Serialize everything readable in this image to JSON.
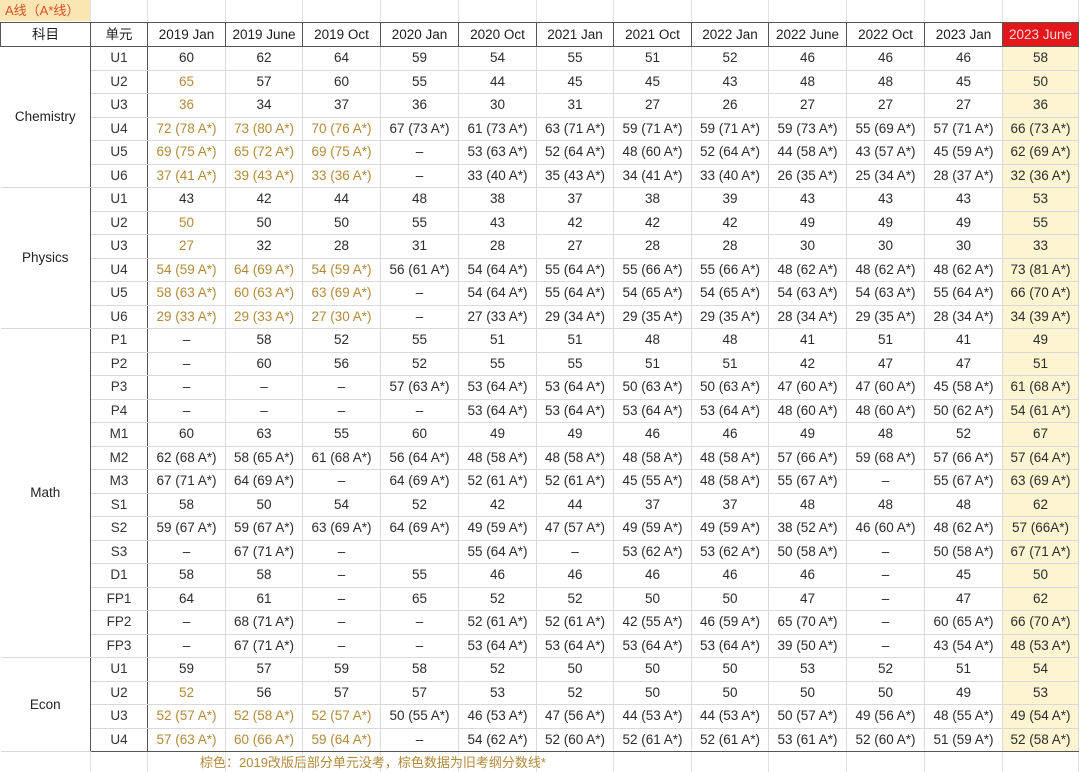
{
  "title": "A线（A*线）",
  "headers": {
    "subject": "科目",
    "unit": "单元",
    "sessions": [
      "2019 Jan",
      "2019 June",
      "2019 Oct",
      "2020 Jan",
      "2020 Oct",
      "2021 Jan",
      "2021 Oct",
      "2022 Jan",
      "2022 June",
      "2022 Oct",
      "2023 Jan",
      "2023 June"
    ],
    "highlighted_session": "2023 June"
  },
  "colors": {
    "highlight_header": "#e3161b",
    "highlight_column": "#fdf5d2",
    "old_syllabus_text": "#b38a3a",
    "title_bg": "#fbe6b3"
  },
  "groups": [
    {
      "subject": "Chemistry",
      "rows": [
        {
          "unit": "U1",
          "values": [
            "60",
            "62",
            "64",
            "59",
            "54",
            "55",
            "51",
            "52",
            "46",
            "46",
            "46",
            "58"
          ],
          "brown": []
        },
        {
          "unit": "U2",
          "values": [
            "65",
            "57",
            "60",
            "55",
            "44",
            "45",
            "45",
            "43",
            "48",
            "48",
            "45",
            "50"
          ],
          "brown": [
            0
          ]
        },
        {
          "unit": "U3",
          "values": [
            "36",
            "34",
            "37",
            "36",
            "30",
            "31",
            "27",
            "26",
            "27",
            "27",
            "27",
            "36"
          ],
          "brown": [
            0
          ]
        },
        {
          "unit": "U4",
          "values": [
            "72 (78 A*)",
            "73 (80 A*)",
            "70 (76 A*)",
            "67 (73 A*)",
            "61 (73 A*)",
            "63 (71 A*)",
            "59 (71 A*)",
            "59 (71 A*)",
            "59 (73 A*)",
            "55 (69 A*)",
            "57 (71 A*)",
            "66 (73 A*)"
          ],
          "brown": [
            0,
            1,
            2
          ]
        },
        {
          "unit": "U5",
          "values": [
            "69 (75 A*)",
            "65 (72 A*)",
            "69 (75 A*)",
            "–",
            "53 (63 A*)",
            "52 (64 A*)",
            "48 (60 A*)",
            "52 (64 A*)",
            "44 (58 A*)",
            "43 (57 A*)",
            "45 (59 A*)",
            "62 (69 A*)"
          ],
          "brown": [
            0,
            1,
            2
          ]
        },
        {
          "unit": "U6",
          "values": [
            "37 (41 A*)",
            "39 (43 A*)",
            "33 (36 A*)",
            "–",
            "33 (40 A*)",
            "35 (43 A*)",
            "34 (41 A*)",
            "33 (40 A*)",
            "26 (35 A*)",
            "25 (34 A*)",
            "28 (37 A*)",
            "32 (36 A*)"
          ],
          "brown": [
            0,
            1,
            2
          ]
        }
      ]
    },
    {
      "subject": "Physics",
      "rows": [
        {
          "unit": "U1",
          "values": [
            "43",
            "42",
            "44",
            "48",
            "38",
            "37",
            "38",
            "39",
            "43",
            "43",
            "43",
            "53"
          ],
          "brown": []
        },
        {
          "unit": "U2",
          "values": [
            "50",
            "50",
            "50",
            "55",
            "43",
            "42",
            "42",
            "42",
            "49",
            "49",
            "49",
            "55"
          ],
          "brown": [
            0
          ]
        },
        {
          "unit": "U3",
          "values": [
            "27",
            "32",
            "28",
            "31",
            "28",
            "27",
            "28",
            "28",
            "30",
            "30",
            "30",
            "33"
          ],
          "brown": [
            0
          ]
        },
        {
          "unit": "U4",
          "values": [
            "54 (59 A*)",
            "64 (69 A*)",
            "54 (59 A*)",
            "56 (61 A*)",
            "54 (64 A*)",
            "55 (64 A*)",
            "55 (66 A*)",
            "55 (66 A*)",
            "48 (62 A*)",
            "48 (62 A*)",
            "48 (62 A*)",
            "73 (81 A*)"
          ],
          "brown": [
            0,
            1,
            2
          ]
        },
        {
          "unit": "U5",
          "values": [
            "58 (63 A*)",
            "60 (63 A*)",
            "63 (69 A*)",
            "–",
            "54 (64 A*)",
            "55 (64 A*)",
            "54 (65 A*)",
            "54 (65 A*)",
            "54 (63 A*)",
            "54 (63 A*)",
            "55 (64 A*)",
            "66 (70 A*)"
          ],
          "brown": [
            0,
            1,
            2
          ]
        },
        {
          "unit": "U6",
          "values": [
            "29 (33 A*)",
            "29 (33 A*)",
            "27 (30 A*)",
            "–",
            "27 (33 A*)",
            "29 (34 A*)",
            "29 (35 A*)",
            "29 (35 A*)",
            "28 (34 A*)",
            "29 (35 A*)",
            "28 (34 A*)",
            "34 (39 A*)"
          ],
          "brown": [
            0,
            1,
            2
          ]
        }
      ]
    },
    {
      "subject": "Math",
      "rows": [
        {
          "unit": "P1",
          "values": [
            "–",
            "58",
            "52",
            "55",
            "51",
            "51",
            "48",
            "48",
            "41",
            "51",
            "41",
            "49"
          ],
          "brown": []
        },
        {
          "unit": "P2",
          "values": [
            "–",
            "60",
            "56",
            "52",
            "55",
            "55",
            "51",
            "51",
            "42",
            "47",
            "47",
            "51"
          ],
          "brown": []
        },
        {
          "unit": "P3",
          "values": [
            "–",
            "–",
            "–",
            "57 (63 A*)",
            "53 (64 A*)",
            "53 (64 A*)",
            "50 (63 A*)",
            "50 (63 A*)",
            "47 (60 A*)",
            "47 (60 A*)",
            "45 (58 A*)",
            "61 (68 A*)"
          ],
          "brown": []
        },
        {
          "unit": "P4",
          "values": [
            "–",
            "–",
            "–",
            "–",
            "53 (64 A*)",
            "53 (64 A*)",
            "53 (64 A*)",
            "53 (64 A*)",
            "48 (60 A*)",
            "48 (60 A*)",
            "50 (62 A*)",
            "54 (61 A*)"
          ],
          "brown": []
        },
        {
          "unit": "M1",
          "values": [
            "60",
            "63",
            "55",
            "60",
            "49",
            "49",
            "46",
            "46",
            "49",
            "48",
            "52",
            "67"
          ],
          "brown": [],
          "subtop": true
        },
        {
          "unit": "M2",
          "values": [
            "62 (68 A*)",
            "58 (65 A*)",
            "61 (68 A*)",
            "56 (64 A*)",
            "48 (58 A*)",
            "48 (58 A*)",
            "48 (58 A*)",
            "48 (58 A*)",
            "57 (66 A*)",
            "59 (68 A*)",
            "57 (66 A*)",
            "57 (64 A*)"
          ],
          "brown": []
        },
        {
          "unit": "M3",
          "values": [
            "67 (71 A*)",
            "64 (69 A*)",
            "–",
            "64 (69 A*)",
            "52 (61 A*)",
            "52 (61 A*)",
            "45 (55 A*)",
            "48 (58 A*)",
            "55 (67 A*)",
            "–",
            "55 (67 A*)",
            "63 (69 A*)"
          ],
          "brown": []
        },
        {
          "unit": "S1",
          "values": [
            "58",
            "50",
            "54",
            "52",
            "42",
            "44",
            "37",
            "37",
            "48",
            "48",
            "48",
            "62"
          ],
          "brown": [],
          "subtop": true
        },
        {
          "unit": "S2",
          "values": [
            "59 (67 A*)",
            "59 (67 A*)",
            "63 (69 A*)",
            "64 (69 A*)",
            "49 (59 A*)",
            "47 (57 A*)",
            "49 (59 A*)",
            "49 (59 A*)",
            "38 (52 A*)",
            "46 (60 A*)",
            "48 (62 A*)",
            "57 (66A*)"
          ],
          "brown": []
        },
        {
          "unit": "S3",
          "values": [
            "–",
            "67 (71 A*)",
            "–",
            "",
            "55 (64 A*)",
            "–",
            "53 (62 A*)",
            "53 (62 A*)",
            "50 (58 A*)",
            "–",
            "50 (58 A*)",
            "67 (71 A*)"
          ],
          "brown": []
        },
        {
          "unit": "D1",
          "values": [
            "58",
            "58",
            "–",
            "55",
            "46",
            "46",
            "46",
            "46",
            "46",
            "–",
            "45",
            "50"
          ],
          "brown": [],
          "subtop": true
        },
        {
          "unit": "FP1",
          "values": [
            "64",
            "61",
            "–",
            "65",
            "52",
            "52",
            "50",
            "50",
            "47",
            "–",
            "47",
            "62"
          ],
          "brown": [],
          "subtop": true
        },
        {
          "unit": "FP2",
          "values": [
            "–",
            "68 (71 A*)",
            "–",
            "–",
            "52 (61 A*)",
            "52 (61 A*)",
            "42 (55 A*)",
            "46 (59 A*)",
            "65 (70 A*)",
            "–",
            "60 (65 A*)",
            "66 (70 A*)"
          ],
          "brown": []
        },
        {
          "unit": "FP3",
          "values": [
            "–",
            "67 (71 A*)",
            "–",
            "–",
            "53 (64 A*)",
            "53 (64 A*)",
            "53 (64 A*)",
            "53 (64 A*)",
            "39 (50 A*)",
            "–",
            "43 (54 A*)",
            "48 (53 A*)"
          ],
          "brown": []
        }
      ]
    },
    {
      "subject": "Econ",
      "rows": [
        {
          "unit": "U1",
          "values": [
            "59",
            "57",
            "59",
            "58",
            "52",
            "50",
            "50",
            "50",
            "53",
            "52",
            "51",
            "54"
          ],
          "brown": []
        },
        {
          "unit": "U2",
          "values": [
            "52",
            "56",
            "57",
            "57",
            "53",
            "52",
            "50",
            "50",
            "50",
            "50",
            "49",
            "53"
          ],
          "brown": [
            0
          ]
        },
        {
          "unit": "U3",
          "values": [
            "52 (57 A*)",
            "52 (58 A*)",
            "52 (57 A*)",
            "50 (55 A*)",
            "46 (53 A*)",
            "47 (56 A*)",
            "44 (53 A*)",
            "44 (53 A*)",
            "50 (57 A*)",
            "49 (56 A*)",
            "48 (55 A*)",
            "49 (54 A*)"
          ],
          "brown": [
            0,
            1,
            2
          ]
        },
        {
          "unit": "U4",
          "values": [
            "57 (63 A*)",
            "60 (66 A*)",
            "59 (64 A*)",
            "–",
            "54 (62 A*)",
            "52 (60 A*)",
            "52 (61 A*)",
            "52 (61 A*)",
            "53 (61 A*)",
            "52 (60 A*)",
            "51 (59 A*)",
            "52 (58 A*)"
          ],
          "brown": [
            0,
            1,
            2
          ]
        }
      ]
    }
  ],
  "footnote": "棕色：2019改版后部分单元没考，棕色数据为旧考纲分数线*"
}
